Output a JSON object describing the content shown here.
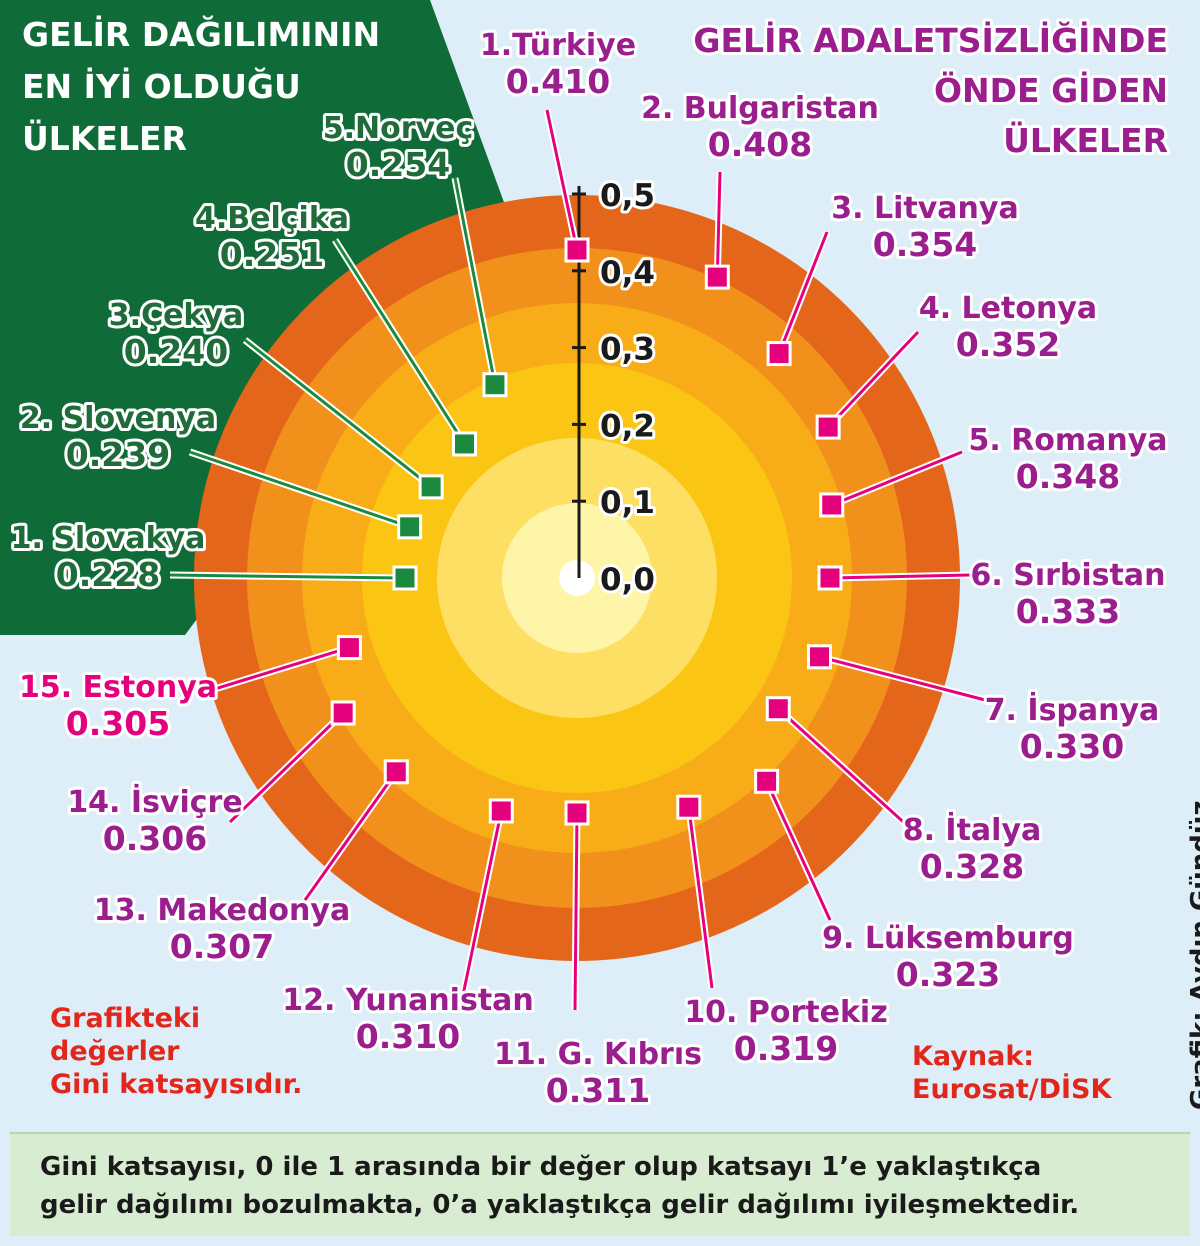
{
  "chart_data": {
    "type": "radial",
    "title_left": [
      "GELİR DAĞILIMININ",
      "EN İYİ OLDUĞU",
      "ÜLKELER"
    ],
    "title_right": [
      "GELİR ADALETSİZLİĞİNDE",
      "ÖNDE GİDEN",
      "ÜLKELER"
    ],
    "axis_ticks": [
      "0,0",
      "0,1",
      "0,2",
      "0,3",
      "0,4",
      "0,5"
    ],
    "axis_range": [
      0,
      0.5
    ],
    "best": [
      {
        "label": "1. Slovakya",
        "value": 0.228,
        "display": "0.228"
      },
      {
        "label": "2. Slovenya",
        "value": 0.239,
        "display": "0.239"
      },
      {
        "label": "3.Çekya",
        "value": 0.24,
        "display": "0.240"
      },
      {
        "label": "4.Belçika",
        "value": 0.251,
        "display": "0.251"
      },
      {
        "label": "5.Norveç",
        "value": 0.254,
        "display": "0.254"
      }
    ],
    "worst": [
      {
        "label": "1.Türkiye",
        "value": 0.41,
        "display": "0.410"
      },
      {
        "label": "2. Bulgaristan",
        "value": 0.408,
        "display": "0.408"
      },
      {
        "label": "3. Litvanya",
        "value": 0.354,
        "display": "0.354"
      },
      {
        "label": "4. Letonya",
        "value": 0.352,
        "display": "0.352"
      },
      {
        "label": "5. Romanya",
        "value": 0.348,
        "display": "0.348"
      },
      {
        "label": "6. Sırbistan",
        "value": 0.333,
        "display": "0.333"
      },
      {
        "label": "7. İspanya",
        "value": 0.33,
        "display": "0.330"
      },
      {
        "label": "8. İtalya",
        "value": 0.328,
        "display": "0.328"
      },
      {
        "label": "9. Lüksemburg",
        "value": 0.323,
        "display": "0.323"
      },
      {
        "label": "10. Portekiz",
        "value": 0.319,
        "display": "0.319"
      },
      {
        "label": "11. G. Kıbrıs",
        "value": 0.311,
        "display": "0.311"
      },
      {
        "label": "12. Yunanistan",
        "value": 0.31,
        "display": "0.310"
      },
      {
        "label": "13. Makedonya",
        "value": 0.307,
        "display": "0.307"
      },
      {
        "label": "14. İsviçre",
        "value": 0.306,
        "display": "0.306"
      },
      {
        "label": "15. Estonya",
        "value": 0.305,
        "display": "0.305"
      }
    ]
  },
  "note": [
    "Grafikteki",
    "değerler",
    "Gini katsayısıdır."
  ],
  "source": [
    "Kaynak:",
    "Eurosat/DİSK"
  ],
  "credit": "Grafik: Aydın Gündüz",
  "footer": [
    "Gini katsayısı, 0 ile 1 arasında bir değer olup katsayı 1’e yaklaştıkça",
    "gelir dağılımı bozulmakta, 0’a yaklaştıkça gelir dağılımı iyileşmektedir."
  ],
  "colors": {
    "background": "#ddeef8",
    "green_panel": "#0f6b37",
    "best_text": "#1f6b3a",
    "best_marker": "#1c8a3e",
    "worst_text": "#9b1e8f",
    "worst_marker": "#e5007d",
    "estonia_text": "#e5007d",
    "ring_outer": "#e4661a",
    "ring_2": "#f1901a",
    "ring_3": "#f8ad18",
    "ring_4": "#fbc514",
    "ring_5": "#fde063",
    "ring_center": "#fff5a8"
  }
}
